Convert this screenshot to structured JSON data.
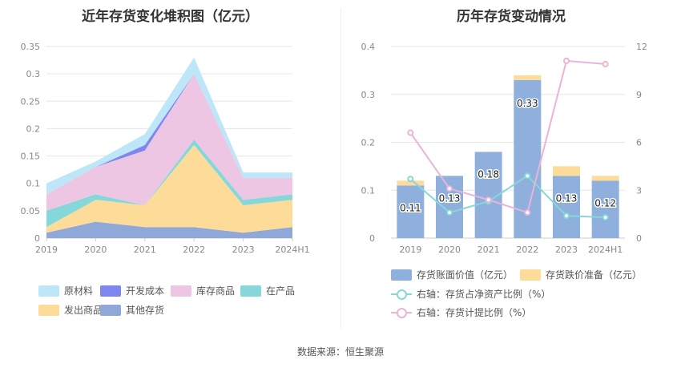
{
  "source_text": "数据来源：恒生聚源",
  "chart_data": [
    {
      "type": "area",
      "title": "近年存货变化堆积图（亿元）",
      "stacked": true,
      "categories": [
        "2019",
        "2020",
        "2021",
        "2022",
        "2023",
        "2024H1"
      ],
      "ylim": [
        0,
        0.35
      ],
      "yticks": [
        "0",
        "0.05",
        "0.1",
        "0.15",
        "0.2",
        "0.25",
        "0.3",
        "0.35"
      ],
      "grid": true,
      "legend_position": "bottom",
      "series": [
        {
          "name": "其他存货",
          "color": "#8fa8d8",
          "values": [
            0.01,
            0.03,
            0.02,
            0.02,
            0.01,
            0.02
          ]
        },
        {
          "name": "发出商品",
          "color": "#fddc9a",
          "values": [
            0.01,
            0.04,
            0.04,
            0.15,
            0.05,
            0.05
          ]
        },
        {
          "name": "在产品",
          "color": "#86d7d9",
          "values": [
            0.03,
            0.01,
            0.0,
            0.01,
            0.01,
            0.01
          ]
        },
        {
          "name": "库存商品",
          "color": "#ecc6e2",
          "values": [
            0.03,
            0.05,
            0.1,
            0.12,
            0.04,
            0.03
          ]
        },
        {
          "name": "开发成本",
          "color": "#7f86ee",
          "values": [
            0.0,
            0.0,
            0.01,
            0.0,
            0.0,
            0.0
          ]
        },
        {
          "name": "原材料",
          "color": "#bde6f8",
          "values": [
            0.02,
            0.01,
            0.02,
            0.03,
            0.01,
            0.01
          ]
        }
      ],
      "legend_order": [
        "原材料",
        "开发成本",
        "库存商品",
        "在产品",
        "发出商品",
        "其他存货"
      ]
    },
    {
      "type": "bar",
      "title": "历年存货变动情况",
      "categories": [
        "2019",
        "2020",
        "2021",
        "2022",
        "2023",
        "2024H1"
      ],
      "ylim": [
        0,
        0.4
      ],
      "yticks": [
        "0",
        "0.1",
        "0.2",
        "0.3",
        "0.4"
      ],
      "y2lim": [
        0,
        12
      ],
      "y2ticks": [
        "0",
        "3",
        "6",
        "9",
        "12"
      ],
      "grid": true,
      "legend_position": "bottom",
      "series": [
        {
          "name": "存货账面价值（亿元）",
          "kind": "bar",
          "color": "#8fb0dc",
          "values": [
            0.11,
            0.13,
            0.18,
            0.33,
            0.13,
            0.12
          ],
          "labels": [
            "0.11",
            "0.13",
            "0.18",
            "0.33",
            "0.13",
            "0.12"
          ]
        },
        {
          "name": "存货跌价准备（亿元）",
          "kind": "bar-stack",
          "color": "#fddc9a",
          "values": [
            0.01,
            0.0,
            0.0,
            0.01,
            0.02,
            0.01
          ]
        },
        {
          "name": "右轴：存货占净资产比例（%）",
          "kind": "line",
          "axis": "right",
          "color": "#86d7d9",
          "values": [
            3.7,
            1.6,
            2.3,
            3.9,
            1.4,
            1.3
          ]
        },
        {
          "name": "右轴：存货计提比例（%）",
          "kind": "line",
          "axis": "right",
          "color": "#e8b4d8",
          "values": [
            6.6,
            3.1,
            2.4,
            1.6,
            11.1,
            10.9
          ]
        }
      ]
    }
  ]
}
